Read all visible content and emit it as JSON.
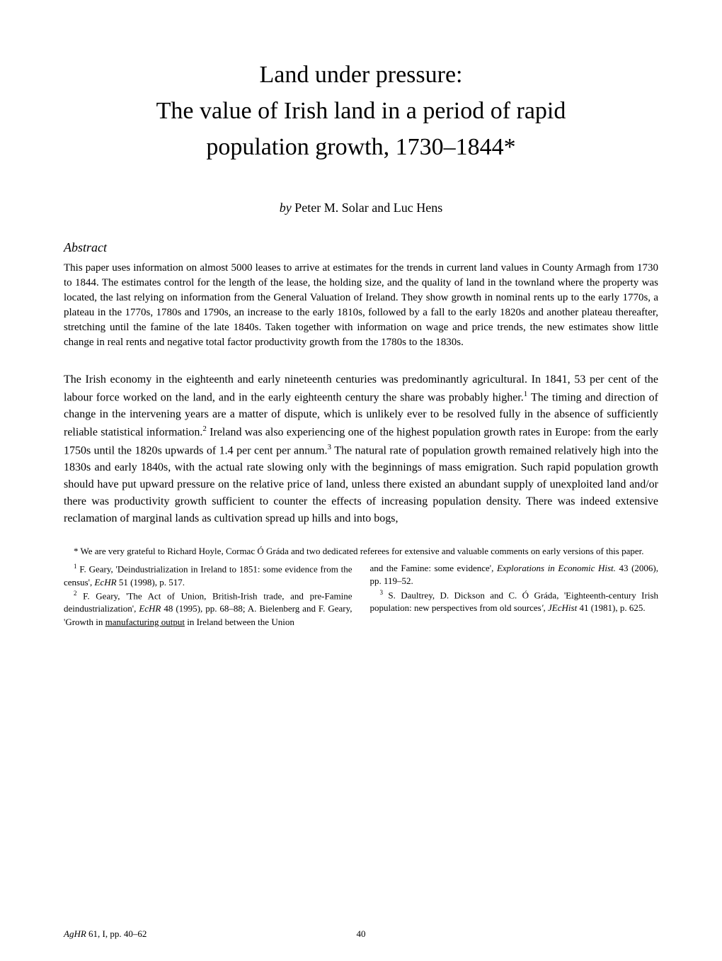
{
  "title": {
    "line1": "Land under pressure:",
    "line2": "The value of Irish land in a period of rapid",
    "line3": "population growth, 1730–1844*"
  },
  "byline": {
    "by": "by",
    "authors": "Peter M. Solar and Luc Hens"
  },
  "abstract": {
    "heading": "Abstract",
    "text": "This paper uses information on almost 5000 leases to arrive at estimates for the trends in current land values in County Armagh from 1730 to 1844. The estimates control for the length of the lease, the holding size, and the quality of land in the townland where the property was located, the last relying on information from the General Valuation of Ireland. They show growth in nominal rents up to the early 1770s, a plateau in the 1770s, 1780s and 1790s, an increase to the early 1810s, followed by a fall to the early 1820s and another plateau thereafter, stretching until the famine of the late 1840s. Taken together with information on wage and price trends, the new estimates show little change in real rents and negative total factor productivity growth from the 1780s to the 1830s."
  },
  "body": {
    "part1": "The Irish economy in the eighteenth and early nineteenth centuries was predominantly agricultural. In 1841, 53 per cent of the labour force worked on the land, and in the early eighteenth century the share was probably higher.",
    "sup1": "1",
    "part2": " The timing and direction of change in the intervening years are a matter of dispute, which is unlikely ever to be resolved fully in the absence of sufficiently reliable statistical information.",
    "sup2": "2",
    "part3": " Ireland was also experiencing one of the highest population growth rates in Europe: from the early 1750s until the 1820s upwards of 1.4 per cent per annum.",
    "sup3": "3",
    "part4": " The natural rate of population growth remained relatively high into the 1830s and early 1840s, with the actual rate slowing only with the beginnings of mass emigration. Such rapid population growth should have put upward pressure on the relative price of land, unless there existed an abundant supply of unexploited land and/or there was productivity growth sufficient to counter the effects of increasing population density. There was indeed extensive reclamation of marginal lands as cultivation spread up hills and into bogs,"
  },
  "footnotes": {
    "ack": "* We are very grateful to Richard Hoyle, Cormac Ó Gráda and two dedicated referees for extensive and valuable comments on early versions of this paper.",
    "fn1": {
      "sup": "1",
      "pre": " F. Geary, 'Deindustrialization in Ireland to 1851: some evidence from the census', ",
      "italic": "EcHR",
      "post": " 51 (1998), p. 517."
    },
    "fn2": {
      "sup": "2",
      "pre": " F. Geary, 'The Act of Union, British-Irish trade, and pre-Famine deindustrialization', ",
      "italic1": "EcHR",
      "mid": " 48 (1995), pp. 68–88; A. Bielenberg and F. Geary, 'Growth in ",
      "underlined": "manufacturing output",
      "post": " in Ireland between the Union"
    },
    "fn2b": {
      "pre": "and the Famine: some evidence', ",
      "italic": "Explorations in Economic Hist.",
      "post": " 43 (2006), pp. 119–52."
    },
    "fn3": {
      "sup": "3",
      "pre": " S. Daultrey, D. Dickson and C. Ó Gráda, 'Eighteenth-century Irish population: new perspectives from old sources",
      "italic": "', JEcHist",
      "post": " 41 (1981), p. 625."
    }
  },
  "footer": {
    "left_italic": "AgHR",
    "left_rest": " 61, I, pp. 40–62",
    "pagenum": "40"
  }
}
